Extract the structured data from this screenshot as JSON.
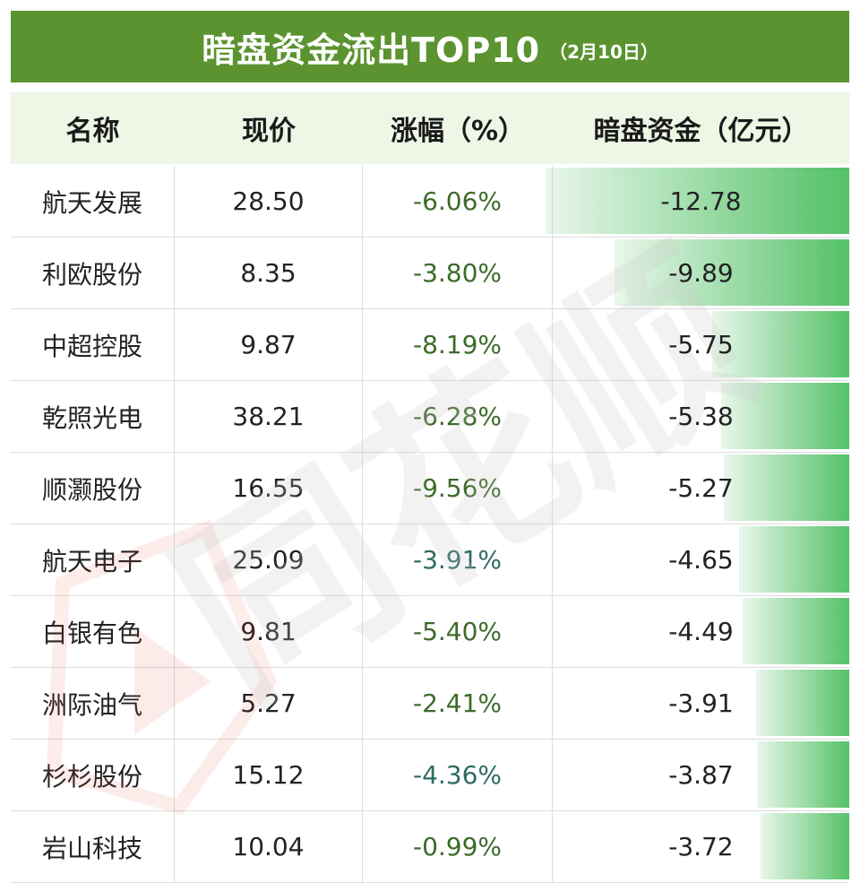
{
  "title": {
    "main": "暗盘资金流出TOP10",
    "date": "（2月10日）"
  },
  "colors": {
    "title_bg": "#5a932f",
    "header_bg": "#eef6e6",
    "bar": "#4bbe5f",
    "watermark": "#e14b3b"
  },
  "chart_data": {
    "type": "table",
    "title": "暗盘资金流出TOP10",
    "subtitle": "（2月10日）",
    "columns": [
      "名称",
      "现价",
      "涨幅（%）",
      "暗盘资金（亿元）"
    ],
    "rows": [
      {
        "name": "航天发展",
        "price": "28.50",
        "change": "-6.06%",
        "fund": "-12.78",
        "fund_value": -12.78,
        "tone": "green"
      },
      {
        "name": "利欧股份",
        "price": "8.35",
        "change": "-3.80%",
        "fund": "-9.89",
        "fund_value": -9.89,
        "tone": "green"
      },
      {
        "name": "中超控股",
        "price": "9.87",
        "change": "-8.19%",
        "fund": "-5.75",
        "fund_value": -5.75,
        "tone": "green"
      },
      {
        "name": "乾照光电",
        "price": "38.21",
        "change": "-6.28%",
        "fund": "-5.38",
        "fund_value": -5.38,
        "tone": "green"
      },
      {
        "name": "顺灏股份",
        "price": "16.55",
        "change": "-9.56%",
        "fund": "-5.27",
        "fund_value": -5.27,
        "tone": "green"
      },
      {
        "name": "航天电子",
        "price": "25.09",
        "change": "-3.91%",
        "fund": "-4.65",
        "fund_value": -4.65,
        "tone": "teal"
      },
      {
        "name": "白银有色",
        "price": "9.81",
        "change": "-5.40%",
        "fund": "-4.49",
        "fund_value": -4.49,
        "tone": "green"
      },
      {
        "name": "洲际油气",
        "price": "5.27",
        "change": "-2.41%",
        "fund": "-3.91",
        "fund_value": -3.91,
        "tone": "green"
      },
      {
        "name": "杉杉股份",
        "price": "15.12",
        "change": "-4.36%",
        "fund": "-3.87",
        "fund_value": -3.87,
        "tone": "teal"
      },
      {
        "name": "岩山科技",
        "price": "10.04",
        "change": "-0.99%",
        "fund": "-3.72",
        "fund_value": -3.72,
        "tone": "green"
      }
    ]
  },
  "watermark": {
    "text": "同花顺",
    "icon": "play-logo-icon"
  }
}
